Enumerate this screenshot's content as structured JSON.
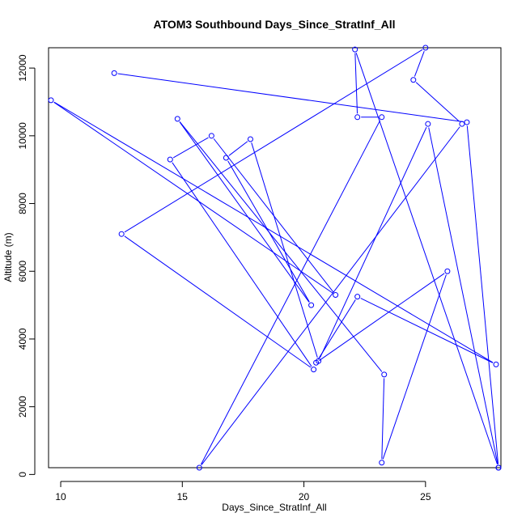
{
  "chart_data": {
    "type": "line",
    "title": "ATOM3 Southbound Days_Since_StratInf_All",
    "xlabel": "Days_Since_StratInf_All",
    "ylabel": "Altitude (m)",
    "xlim": [
      9.5,
      28.1
    ],
    "ylim": [
      200,
      12600
    ],
    "x_ticks": [
      10,
      15,
      20,
      25
    ],
    "y_ticks": [
      0,
      2000,
      4000,
      6000,
      8000,
      10000,
      12000
    ],
    "x_tick_labels": [
      "10",
      "15",
      "20",
      "25"
    ],
    "y_tick_labels": [
      "0",
      "2000",
      "4000",
      "6000",
      "8000",
      "10000",
      "12000"
    ],
    "grid": false,
    "legend": "none",
    "line_color": "#0000FF",
    "marker": "open-circle",
    "series": [
      {
        "points": [
          {
            "x": 12.2,
            "y": 11850
          },
          {
            "x": 26.7,
            "y": 10400
          },
          {
            "x": 28.0,
            "y": 200
          },
          {
            "x": 22.1,
            "y": 12550
          },
          {
            "x": 22.2,
            "y": 10550
          },
          {
            "x": 23.2,
            "y": 10550
          },
          {
            "x": 15.7,
            "y": 200
          },
          {
            "x": 26.5,
            "y": 10350
          },
          {
            "x": 24.5,
            "y": 11650
          },
          {
            "x": 25.0,
            "y": 12600
          },
          {
            "x": 12.5,
            "y": 7100
          },
          {
            "x": 20.4,
            "y": 3100
          },
          {
            "x": 14.5,
            "y": 9300
          },
          {
            "x": 16.2,
            "y": 10000
          },
          {
            "x": 21.3,
            "y": 5300
          },
          {
            "x": 9.6,
            "y": 11050
          },
          {
            "x": 27.9,
            "y": 3250
          },
          {
            "x": 22.2,
            "y": 5250
          },
          {
            "x": 20.5,
            "y": 3300
          },
          {
            "x": 25.9,
            "y": 6000
          },
          {
            "x": 23.2,
            "y": 350
          },
          {
            "x": 23.3,
            "y": 2950
          },
          {
            "x": 14.8,
            "y": 10500
          },
          {
            "x": 20.3,
            "y": 5000
          },
          {
            "x": 16.8,
            "y": 9350
          },
          {
            "x": 17.8,
            "y": 9900
          },
          {
            "x": 20.6,
            "y": 3350
          },
          {
            "x": 25.1,
            "y": 10350
          },
          {
            "x": 28.0,
            "y": 200
          }
        ]
      }
    ]
  }
}
